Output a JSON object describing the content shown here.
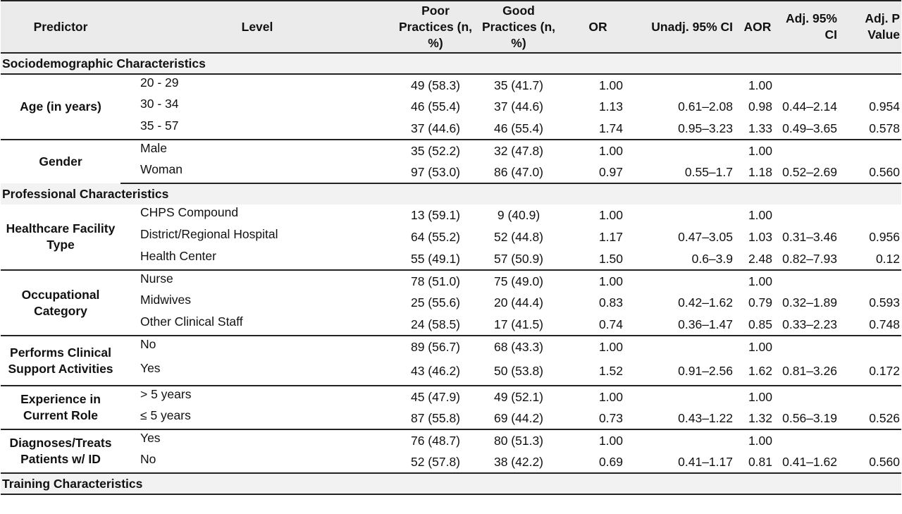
{
  "headers": {
    "predictor": "Predictor",
    "level": "Level",
    "poor": "Poor Practices (n, %)",
    "good": "Good Practices (n, %)",
    "or": "OR",
    "unadj_ci": "Unadj. 95% CI",
    "aor": "AOR",
    "adj_ci": "Adj. 95% CI",
    "adj_p": "Adj. P Value"
  },
  "sections": {
    "socio": "Sociodemographic Characteristics",
    "professional": "Professional Characteristics",
    "training": "Training Characteristics"
  },
  "groups": {
    "age": {
      "predictor": "Age (in years)",
      "rows": [
        {
          "level": "20 - 29",
          "poor": "49 (58.3)",
          "good": "35 (41.7)",
          "or": "1.00",
          "ci": "",
          "aor": "1.00",
          "aci": "",
          "p": ""
        },
        {
          "level": "30 - 34",
          "poor": "46 (55.4)",
          "good": "37 (44.6)",
          "or": "1.13",
          "ci": "0.61–2.08",
          "aor": "0.98",
          "aci": "0.44–2.14",
          "p": "0.954"
        },
        {
          "level": "35 - 57",
          "poor": "37 (44.6)",
          "good": "46 (55.4)",
          "or": "1.74",
          "ci": "0.95–3.23",
          "aor": "1.33",
          "aci": "0.49–3.65",
          "p": "0.578"
        }
      ]
    },
    "gender": {
      "predictor": "Gender",
      "rows": [
        {
          "level": "Male",
          "poor": "35 (52.2)",
          "good": "32 (47.8)",
          "or": "1.00",
          "ci": "",
          "aor": "1.00",
          "aci": "",
          "p": ""
        },
        {
          "level": "Woman",
          "poor": "97 (53.0)",
          "good": "86 (47.0)",
          "or": "0.97",
          "ci": "0.55–1.7",
          "aor": "1.18",
          "aci": "0.52–2.69",
          "p": "0.560"
        }
      ]
    },
    "facility": {
      "predictor": "Healthcare Facility Type",
      "rows": [
        {
          "level": "CHPS Compound",
          "poor": "13 (59.1)",
          "good": "9 (40.9)",
          "or": "1.00",
          "ci": "",
          "aor": "1.00",
          "aci": "",
          "p": ""
        },
        {
          "level": "District/Regional Hospital",
          "poor": "64 (55.2)",
          "good": "52 (44.8)",
          "or": "1.17",
          "ci": "0.47–3.05",
          "aor": "1.03",
          "aci": "0.31–3.46",
          "p": "0.956"
        },
        {
          "level": "Health Center",
          "poor": "55 (49.1)",
          "good": "57 (50.9)",
          "or": "1.50",
          "ci": "0.6–3.9",
          "aor": "2.48",
          "aci": "0.82–7.93",
          "p": "0.12"
        }
      ]
    },
    "occupation": {
      "predictor": "Occupational Category",
      "rows": [
        {
          "level": "Nurse",
          "poor": "78 (51.0)",
          "good": "75 (49.0)",
          "or": "1.00",
          "ci": "",
          "aor": "1.00",
          "aci": "",
          "p": ""
        },
        {
          "level": "Midwives",
          "poor": "25 (55.6)",
          "good": "20 (44.4)",
          "or": "0.83",
          "ci": "0.42–1.62",
          "aor": "0.79",
          "aci": "0.32–1.89",
          "p": "0.593"
        },
        {
          "level": "Other Clinical Staff",
          "poor": "24 (58.5)",
          "good": "17 (41.5)",
          "or": "0.74",
          "ci": "0.36–1.47",
          "aor": "0.85",
          "aci": "0.33–2.23",
          "p": "0.748"
        }
      ]
    },
    "clinical": {
      "predictor": "Performs Clinical Support Activities",
      "rows": [
        {
          "level": "No",
          "poor": "89 (56.7)",
          "good": "68 (43.3)",
          "or": "1.00",
          "ci": "",
          "aor": "1.00",
          "aci": "",
          "p": ""
        },
        {
          "level": "Yes",
          "poor": "43 (46.2)",
          "good": "50 (53.8)",
          "or": "1.52",
          "ci": "0.91–2.56",
          "aor": "1.62",
          "aci": "0.81–3.26",
          "p": "0.172"
        }
      ]
    },
    "experience": {
      "predictor": "Experience in Current Role",
      "rows": [
        {
          "level": "> 5 years",
          "poor": "45 (47.9)",
          "good": "49 (52.1)",
          "or": "1.00",
          "ci": "",
          "aor": "1.00",
          "aci": "",
          "p": ""
        },
        {
          "level": "≤ 5 years",
          "poor": "87 (55.8)",
          "good": "69 (44.2)",
          "or": "0.73",
          "ci": "0.43–1.22",
          "aor": "1.32",
          "aci": "0.56–3.19",
          "p": "0.526"
        }
      ]
    },
    "diagnoses": {
      "predictor": "Diagnoses/Treats Patients w/ ID",
      "rows": [
        {
          "level": "Yes",
          "poor": "76 (48.7)",
          "good": "80 (51.3)",
          "or": "1.00",
          "ci": "",
          "aor": "1.00",
          "aci": "",
          "p": ""
        },
        {
          "level": "No",
          "poor": "52 (57.8)",
          "good": "38 (42.2)",
          "or": "0.69",
          "ci": "0.41–1.17",
          "aor": "0.81",
          "aci": "0.41–1.62",
          "p": "0.560"
        }
      ]
    }
  }
}
